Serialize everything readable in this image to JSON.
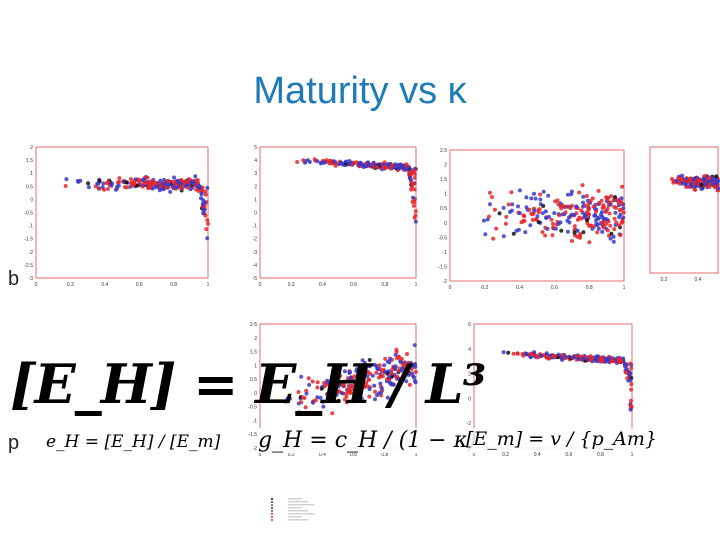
{
  "title": "Maturity vs κ",
  "side_labels": [
    "b",
    "p"
  ],
  "equations": {
    "big": "[E_H] = E_H / L³",
    "ratio": "e_H = [E_H] / [E_m]",
    "gh": "g_H = c_H / (1 − κ)",
    "em": "[E_m] = v / {p_Am}"
  },
  "colors": {
    "red": "#e8262a",
    "blue": "#3a3ac8",
    "black": "#111111",
    "frame": "#e04a4a",
    "title": "#1f7ab8"
  },
  "chart_data": [
    {
      "type": "scatter",
      "name_id": "panel-1",
      "xticks": [
        "0",
        "0.2",
        "0.4",
        "0.6",
        "0.8",
        "1"
      ],
      "yticks": [
        "2",
        "1.5",
        "1",
        "0.5",
        "0",
        "-0.5",
        "-1",
        "-1.5",
        "-2",
        "-2.5",
        "-3"
      ],
      "xlim": [
        0,
        1
      ],
      "ylim": [
        -3,
        2
      ],
      "pattern": "plateau-drop",
      "y_level": 0.6
    },
    {
      "type": "scatter",
      "name_id": "panel-2",
      "xticks": [
        "0",
        "0.2",
        "0.4",
        "0.6",
        "0.8",
        "1"
      ],
      "yticks": [
        "5",
        "4",
        "3",
        "2",
        "1",
        "0",
        "-1",
        "-2",
        "-3",
        "-4",
        "-5"
      ],
      "xlim": [
        0,
        1
      ],
      "ylim": [
        -5,
        5
      ],
      "pattern": "decline-drop",
      "y_level": 4.2
    },
    {
      "type": "scatter",
      "name_id": "panel-3",
      "xticks": [
        "0",
        "0.2",
        "0.4",
        "0.6",
        "0.8",
        "1"
      ],
      "yticks": [
        "2.5",
        "2",
        "1.5",
        "1",
        "0.5",
        "0",
        "-0.5",
        "-1",
        "-1.5",
        "-2"
      ],
      "xlim": [
        0,
        1
      ],
      "ylim": [
        -2,
        2.5
      ],
      "pattern": "cloud",
      "y_level": 0.3
    },
    {
      "type": "scatter",
      "name_id": "panel-5",
      "xticks": [
        "0",
        "0.2",
        "0.4",
        "0.6",
        "0.8",
        "1"
      ],
      "yticks": [
        "2.5",
        "2",
        "1.5",
        "1",
        "0.5",
        "0",
        "-0.5",
        "-1",
        "-1.5",
        "-2"
      ],
      "xlim": [
        0,
        1
      ],
      "ylim": [
        -2,
        2.5
      ],
      "pattern": "rising-cloud",
      "y_level": 0.2
    },
    {
      "type": "scatter",
      "name_id": "panel-6",
      "xticks": [
        "0",
        "0.2",
        "0.4",
        "0.6",
        "0.8",
        "1"
      ],
      "yticks": [
        "6",
        "4",
        "2",
        "0",
        "-2",
        "-4"
      ],
      "xlim": [
        0,
        1
      ],
      "ylim": [
        -4,
        6
      ],
      "pattern": "decline-drop",
      "y_level": 3.8
    },
    {
      "type": "scatter",
      "name_id": "panel-4-partial",
      "xticks": [
        "0.2",
        "0.4"
      ],
      "yticks": [],
      "xlim": [
        0,
        1
      ],
      "ylim": [
        -3,
        2
      ],
      "pattern": "plateau-drop",
      "y_level": 0.6
    }
  ]
}
